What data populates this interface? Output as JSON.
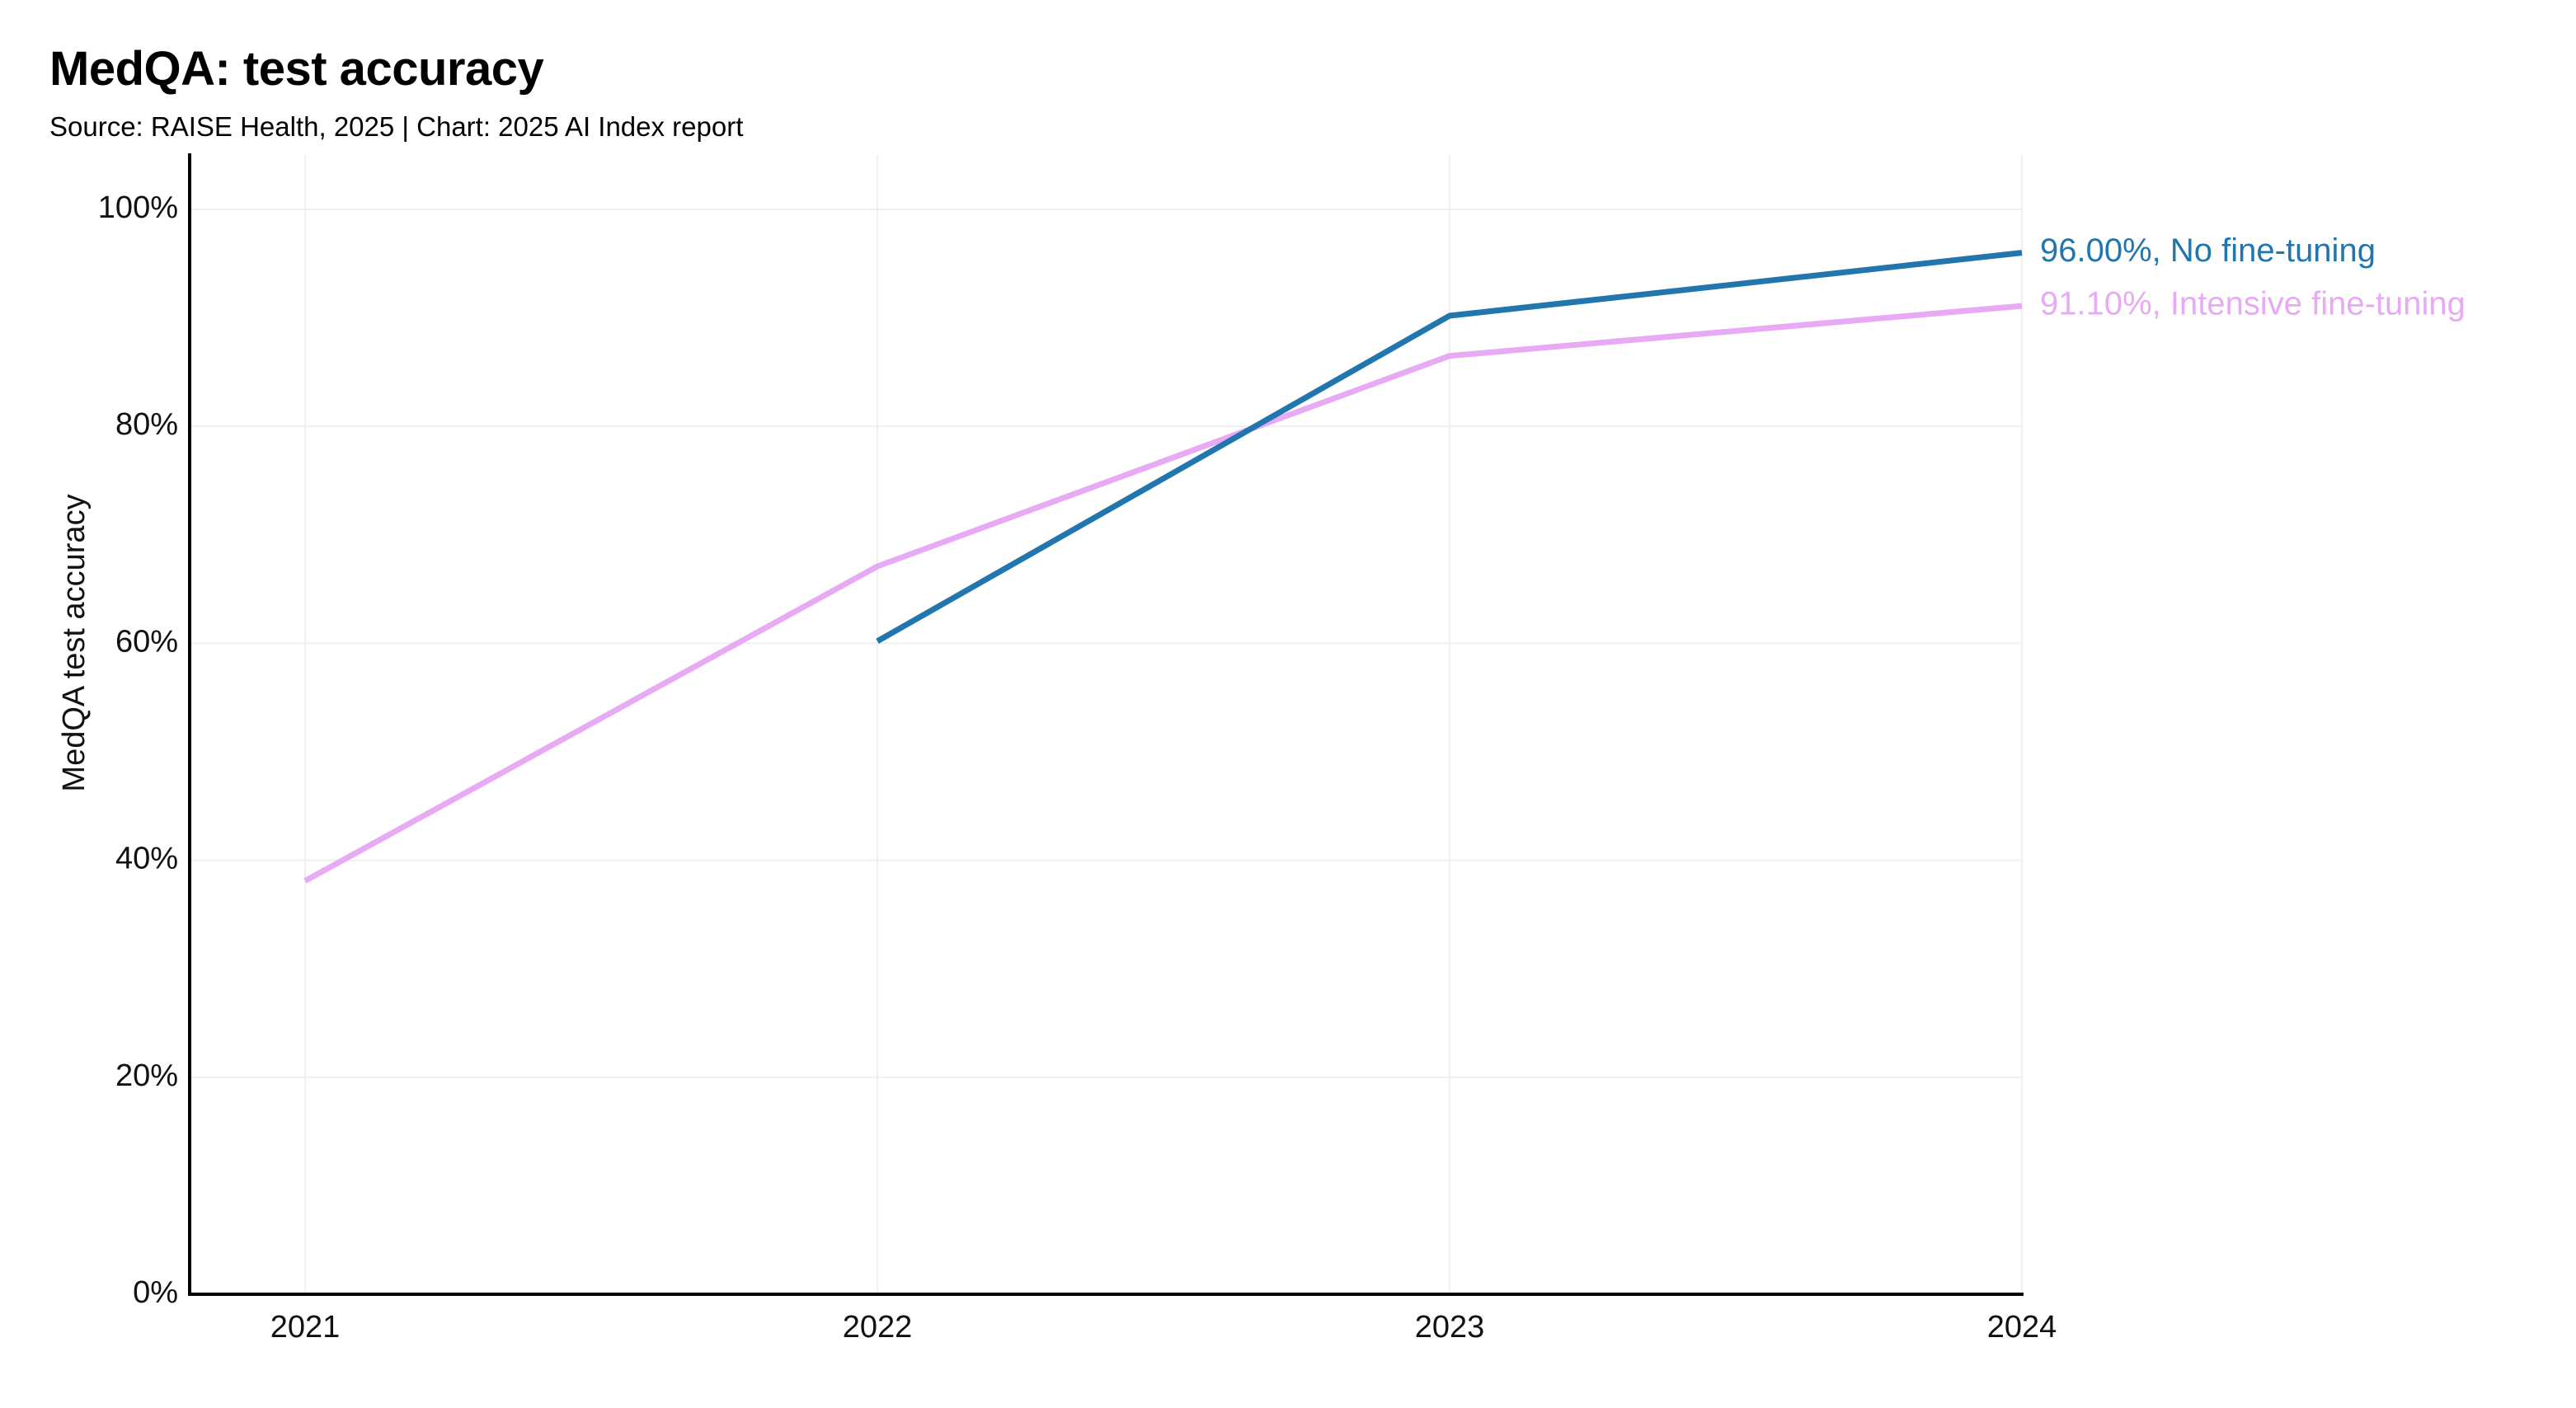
{
  "chart_data": {
    "type": "line",
    "title": "MedQA: test accuracy",
    "subtitle": "Source: RAISE Health, 2025 | Chart: 2025 AI Index report",
    "xlabel": "",
    "ylabel": "MedQA test accuracy",
    "x": [
      "2021",
      "2022",
      "2023",
      "2024"
    ],
    "ylim": [
      0,
      105
    ],
    "y_ticks": [
      0,
      20,
      40,
      60,
      80,
      100
    ],
    "y_tick_labels": [
      "0%",
      "20%",
      "40%",
      "60%",
      "80%",
      "100%"
    ],
    "grid": true,
    "series": [
      {
        "name": "No fine-tuning",
        "color": "#2176ae",
        "values": [
          null,
          60.2,
          90.2,
          96.0
        ],
        "end_label": "96.00%, No fine-tuning"
      },
      {
        "name": "Intensive fine-tuning",
        "color": "#e8aaf4",
        "values": [
          38.1,
          67.1,
          86.5,
          91.1
        ],
        "end_label": "91.10%, Intensive fine-tuning"
      }
    ]
  }
}
